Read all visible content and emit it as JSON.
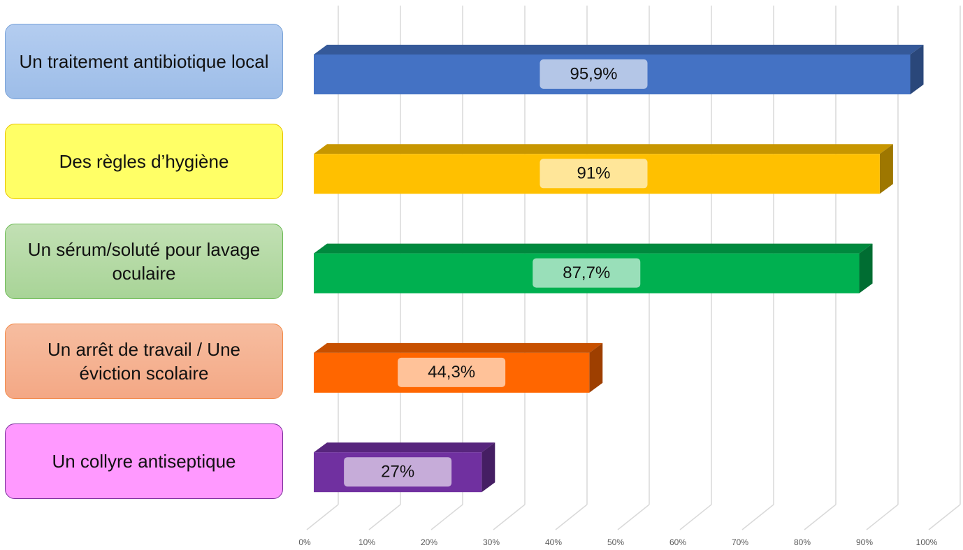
{
  "chart_data": {
    "type": "bar3d_horizontal",
    "categories": [
      "Un traitement antibiotique local",
      "Des règles d’hygiène",
      "Un sérum/soluté pour lavage oculaire",
      "Un arrêt de travail / Une éviction scolaire",
      "Un collyre antiseptique"
    ],
    "values": [
      95.9,
      91,
      87.7,
      44.3,
      27
    ],
    "value_labels": [
      "95,9%",
      "91%",
      "87,7%",
      "44,3%",
      "27%"
    ],
    "colors": [
      "#4472c4",
      "#ffc000",
      "#00b050",
      "#ff6600",
      "#7030a0"
    ],
    "xlim": [
      0,
      100
    ],
    "xticks": [
      {
        "value": 0,
        "label": "0%"
      },
      {
        "value": 10,
        "label": "10%"
      },
      {
        "value": 20,
        "label": "20%"
      },
      {
        "value": 30,
        "label": "30%"
      },
      {
        "value": 40,
        "label": "40%"
      },
      {
        "value": 50,
        "label": "50%"
      },
      {
        "value": 60,
        "label": "60%"
      },
      {
        "value": 70,
        "label": "70%"
      },
      {
        "value": 80,
        "label": "80%"
      },
      {
        "value": 90,
        "label": "90%"
      },
      {
        "value": 100,
        "label": "100%"
      }
    ],
    "grid": true
  }
}
